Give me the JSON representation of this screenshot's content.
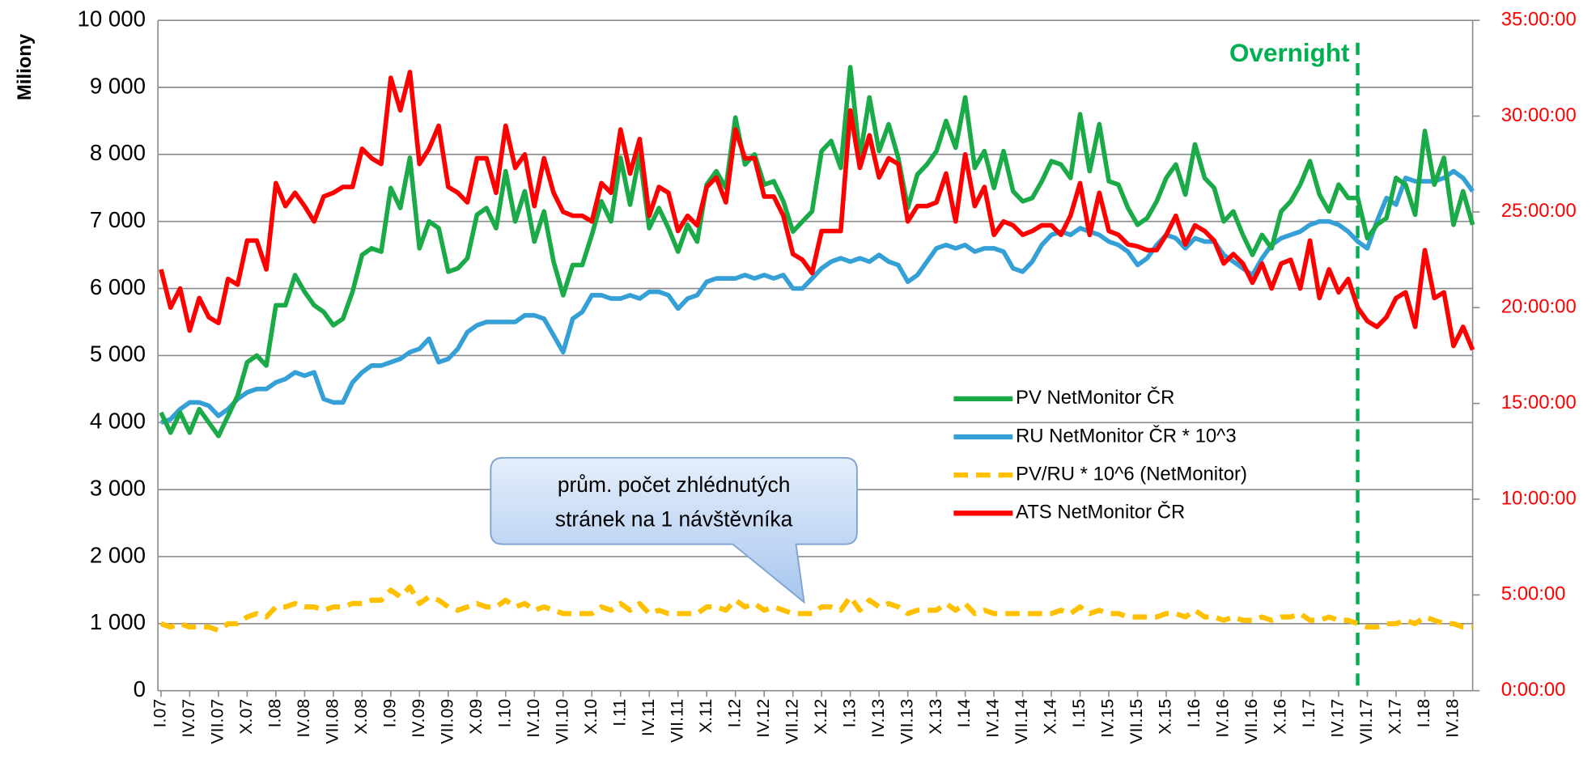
{
  "chart_data": {
    "type": "line",
    "y_label": "Miliony",
    "categories": [
      "I.07",
      null,
      null,
      "IV.07",
      null,
      null,
      "VII.07",
      null,
      null,
      "X.07",
      null,
      null,
      "I.08",
      null,
      null,
      "IV.08",
      null,
      null,
      "VII.08",
      null,
      null,
      "X.08",
      null,
      null,
      "I.09",
      null,
      null,
      "IV.09",
      null,
      null,
      "VII.09",
      null,
      null,
      "X.09",
      null,
      null,
      "I.10",
      null,
      null,
      "IV.10",
      null,
      null,
      "VII.10",
      null,
      null,
      "X.10",
      null,
      null,
      "I.11",
      null,
      null,
      "IV.11",
      null,
      null,
      "VII.11",
      null,
      null,
      "X.11",
      null,
      null,
      "I.12",
      null,
      null,
      "IV.12",
      null,
      null,
      "VII.12",
      null,
      null,
      "X.12",
      null,
      null,
      "I.13",
      null,
      null,
      "IV.13",
      null,
      null,
      "VII.13",
      null,
      null,
      "X.13",
      null,
      null,
      "I.14",
      null,
      null,
      "IV.14",
      null,
      null,
      "VII.14",
      null,
      null,
      "X.14",
      null,
      null,
      "I.15",
      null,
      null,
      "IV.15",
      null,
      null,
      "VII.15",
      null,
      null,
      "X.15",
      null,
      null,
      "I.16",
      null,
      null,
      "IV.16",
      null,
      null,
      "VII.16",
      null,
      null,
      "X.16",
      null,
      null,
      "I.17",
      null,
      null,
      "IV.17",
      null,
      null,
      "VII.17",
      null,
      null,
      "X.17",
      null,
      null,
      "I.18",
      null,
      null,
      "IV.18",
      null,
      null
    ],
    "series": [
      {
        "name": "PV NetMonitor ČR",
        "color": "#1aaa48",
        "dashed": false,
        "values": [
          4150,
          3850,
          4150,
          3850,
          4200,
          4000,
          3800,
          4100,
          4400,
          4900,
          5000,
          4850,
          5750,
          5750,
          6200,
          5950,
          5750,
          5650,
          5450,
          5550,
          5950,
          6500,
          6600,
          6550,
          7500,
          7200,
          7950,
          6600,
          7000,
          6900,
          6250,
          6300,
          6450,
          7100,
          7200,
          6900,
          7750,
          7000,
          7450,
          6700,
          7150,
          6400,
          5900,
          6350,
          6350,
          6800,
          7300,
          7000,
          7950,
          7250,
          8000,
          6900,
          7200,
          6900,
          6550,
          6950,
          6700,
          7550,
          7750,
          7500,
          8550,
          7850,
          8000,
          7550,
          7600,
          7300,
          6850,
          7000,
          7150,
          8050,
          8200,
          7800,
          9300,
          7950,
          8850,
          8050,
          8450,
          7950,
          7200,
          7700,
          7850,
          8050,
          8500,
          8100,
          8850,
          7800,
          8050,
          7500,
          8050,
          7450,
          7300,
          7350,
          7600,
          7900,
          7850,
          7650,
          8600,
          7750,
          8450,
          7600,
          7550,
          7200,
          6950,
          7050,
          7300,
          7650,
          7850,
          7400,
          8150,
          7650,
          7500,
          7000,
          7150,
          6800,
          6500,
          6800,
          6600,
          7150,
          7300,
          7550,
          7900,
          7400,
          7150,
          7550,
          7350,
          7350,
          6750,
          6950,
          7050,
          7650,
          7550,
          7100,
          8350,
          7550,
          7950,
          6950,
          7450,
          6950
        ]
      },
      {
        "name": "RU NetMonitor ČR * 10^3",
        "color": "#35a0d6",
        "dashed": false,
        "values": [
          4000,
          4050,
          4200,
          4300,
          4300,
          4250,
          4100,
          4200,
          4350,
          4450,
          4500,
          4500,
          4600,
          4650,
          4750,
          4700,
          4750,
          4350,
          4300,
          4300,
          4600,
          4750,
          4850,
          4850,
          4900,
          4950,
          5050,
          5100,
          5250,
          4900,
          4950,
          5100,
          5350,
          5450,
          5500,
          5500,
          5500,
          5500,
          5600,
          5600,
          5550,
          5300,
          5050,
          5550,
          5650,
          5900,
          5900,
          5850,
          5850,
          5900,
          5850,
          5950,
          5950,
          5900,
          5700,
          5850,
          5900,
          6100,
          6150,
          6150,
          6150,
          6200,
          6150,
          6200,
          6150,
          6200,
          6000,
          6000,
          6150,
          6300,
          6400,
          6450,
          6400,
          6450,
          6400,
          6500,
          6400,
          6350,
          6100,
          6200,
          6400,
          6600,
          6650,
          6600,
          6650,
          6550,
          6600,
          6600,
          6550,
          6300,
          6250,
          6400,
          6650,
          6800,
          6850,
          6800,
          6900,
          6850,
          6800,
          6700,
          6650,
          6550,
          6350,
          6450,
          6650,
          6800,
          6750,
          6600,
          6750,
          6700,
          6700,
          6500,
          6400,
          6300,
          6200,
          6450,
          6650,
          6750,
          6800,
          6850,
          6950,
          7000,
          7000,
          6950,
          6850,
          6700,
          6600,
          7000,
          7350,
          7250,
          7650,
          7600,
          7600,
          7600,
          7650,
          7750,
          7650,
          7450
        ]
      },
      {
        "name": "PV/RU * 10^6 (NetMonitor)",
        "color": "#ffc000",
        "dashed": true,
        "values": [
          1000,
          950,
          1000,
          950,
          950,
          950,
          900,
          1000,
          1000,
          1100,
          1150,
          1100,
          1250,
          1250,
          1300,
          1250,
          1250,
          1200,
          1250,
          1250,
          1300,
          1300,
          1350,
          1350,
          1500,
          1400,
          1550,
          1300,
          1400,
          1350,
          1250,
          1200,
          1250,
          1300,
          1250,
          1250,
          1350,
          1250,
          1300,
          1200,
          1250,
          1200,
          1150,
          1150,
          1150,
          1150,
          1250,
          1200,
          1300,
          1200,
          1300,
          1150,
          1200,
          1150,
          1150,
          1150,
          1150,
          1250,
          1250,
          1200,
          1350,
          1250,
          1300,
          1200,
          1250,
          1200,
          1150,
          1150,
          1150,
          1250,
          1250,
          1200,
          1400,
          1200,
          1350,
          1250,
          1300,
          1250,
          1150,
          1200,
          1200,
          1200,
          1300,
          1200,
          1300,
          1150,
          1200,
          1150,
          1150,
          1150,
          1150,
          1150,
          1150,
          1150,
          1200,
          1150,
          1250,
          1150,
          1200,
          1150,
          1150,
          1100,
          1100,
          1100,
          1100,
          1150,
          1150,
          1100,
          1200,
          1100,
          1100,
          1050,
          1100,
          1050,
          1050,
          1100,
          1050,
          1100,
          1100,
          1150,
          1050,
          1050,
          1100,
          1050,
          1050,
          1000,
          950,
          950,
          1000,
          1000,
          1050,
          1000,
          1100,
          1050,
          1000,
          1000,
          950,
          950
        ]
      },
      {
        "name": "ATS NetMonitor ČR",
        "color": "#ff0000",
        "dashed": false,
        "axis": "y2",
        "values": [
          22.0,
          20.0,
          21.0,
          18.8,
          20.5,
          19.5,
          19.2,
          21.5,
          21.2,
          23.5,
          23.5,
          22.0,
          26.5,
          25.3,
          26.0,
          25.3,
          24.5,
          25.8,
          26.0,
          26.3,
          26.3,
          28.3,
          27.8,
          27.5,
          32.0,
          30.3,
          32.3,
          27.5,
          28.3,
          29.5,
          26.3,
          26.0,
          25.5,
          27.8,
          27.8,
          26.0,
          29.5,
          27.3,
          28.0,
          25.3,
          27.8,
          26.0,
          25.0,
          24.8,
          24.8,
          24.5,
          26.5,
          26.0,
          29.3,
          27.0,
          28.8,
          24.8,
          26.3,
          26.0,
          24.0,
          24.8,
          24.3,
          26.3,
          26.8,
          25.5,
          29.3,
          27.8,
          27.8,
          25.8,
          25.8,
          24.8,
          22.8,
          22.5,
          21.8,
          24.0,
          24.0,
          24.0,
          30.3,
          27.3,
          29.0,
          26.8,
          27.8,
          27.5,
          24.5,
          25.3,
          25.3,
          25.5,
          27.0,
          24.5,
          28.0,
          25.3,
          26.3,
          23.8,
          24.5,
          24.3,
          23.8,
          24.0,
          24.3,
          24.3,
          23.8,
          24.8,
          26.5,
          23.8,
          26.0,
          24.0,
          23.8,
          23.3,
          23.2,
          23.0,
          23.0,
          23.8,
          24.8,
          23.3,
          24.3,
          24.0,
          23.5,
          22.3,
          22.8,
          22.3,
          21.3,
          22.3,
          21.0,
          22.3,
          22.5,
          21.0,
          23.5,
          20.5,
          22.0,
          20.8,
          21.5,
          20.0,
          19.3,
          19.0,
          19.5,
          20.5,
          20.8,
          19.0,
          23.0,
          20.5,
          20.8,
          18.0,
          19.0,
          17.8
        ]
      }
    ],
    "ylim": [
      0,
      10000
    ],
    "yticks": [
      0,
      {
        "value": 1000,
        "label": "1 000"
      },
      {
        "value": 2000,
        "label": "2 000"
      },
      {
        "value": 3000,
        "label": "3 000"
      },
      {
        "value": 4000,
        "label": "4 000"
      },
      {
        "value": 5000,
        "label": "5 000"
      },
      {
        "value": 6000,
        "label": "6 000"
      },
      {
        "value": 7000,
        "label": "7 000"
      },
      {
        "value": 8000,
        "label": "8 000"
      },
      {
        "value": 9000,
        "label": "9 000"
      },
      {
        "value": 10000,
        "label": "10 000"
      }
    ],
    "y2lim": [
      0,
      35
    ],
    "y2ticks": [
      {
        "value": 0,
        "label": "0:00:00"
      },
      {
        "value": 5,
        "label": "5:00:00"
      },
      {
        "value": 10,
        "label": "10:00:00"
      },
      {
        "value": 15,
        "label": "15:00:00"
      },
      {
        "value": 20,
        "label": "20:00:00"
      },
      {
        "value": 25,
        "label": "25:00:00"
      },
      {
        "value": 30,
        "label": "30:00:00"
      },
      {
        "value": 35,
        "label": "35:00:00"
      }
    ],
    "y2_color": "#ff0000",
    "grid": true,
    "annotations": {
      "marker": "Overnight",
      "marker_color": "#00b050",
      "callout": [
        "prům. počet zhlédnutých",
        "stránek na 1 návštěvníka"
      ]
    }
  }
}
